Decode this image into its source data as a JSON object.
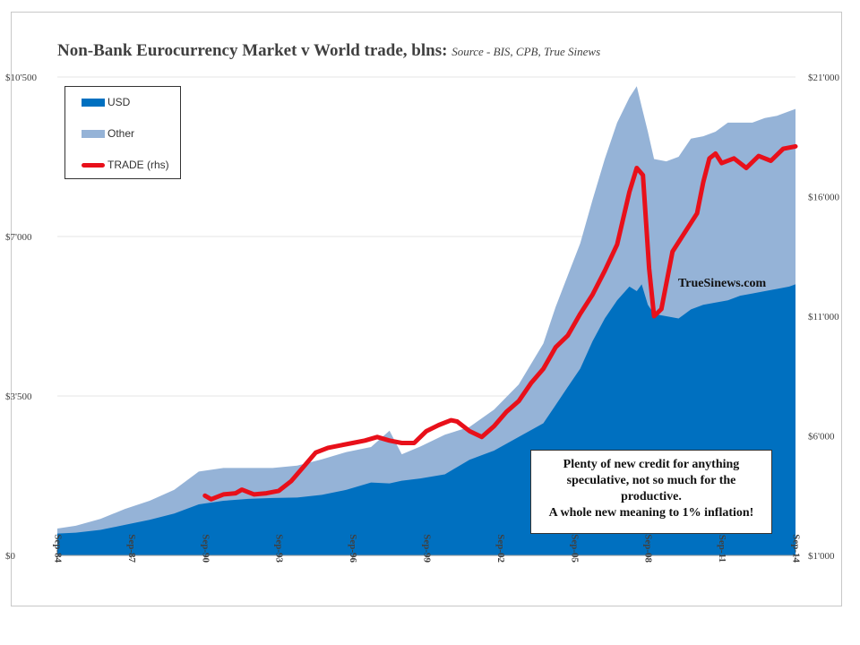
{
  "title": "Non-Bank Eurocurrency Market v World trade, blns:",
  "source": "Source - BIS,  CPB, True Sinews",
  "watermark": "TrueSinews.com",
  "annotation": [
    "Plenty of new credit for anything",
    "speculative, not so much for the",
    "productive.",
    "A whole new meaning to 1% inflation!"
  ],
  "legend": {
    "usd": "USD",
    "other": "Other",
    "trade": "TRADE (rhs)"
  },
  "colors": {
    "usd": "#0070c0",
    "other": "#95b3d7",
    "trade": "#e8101a",
    "grid": "#e6e6e6"
  },
  "chart_data": {
    "type": "area",
    "title": "Non-Bank Eurocurrency Market v World trade, blns:",
    "x_start_year": 1984,
    "x_end_year": 2014,
    "x_ticks": [
      "Sep-84",
      "Sep-87",
      "Sep-90",
      "Sep-93",
      "Sep-96",
      "Sep-99",
      "Sep-02",
      "Sep-05",
      "Sep-08",
      "Sep-11",
      "Sep-14"
    ],
    "y_left": {
      "min": 0,
      "max": 10500,
      "ticks": [
        0,
        3500,
        7000,
        10500
      ],
      "tick_labels": [
        "$0",
        "$3'500",
        "$7'000",
        "$10'500"
      ]
    },
    "y_right": {
      "min": 1000,
      "max": 21000,
      "ticks": [
        1000,
        6000,
        11000,
        16000,
        21000
      ],
      "tick_labels": [
        "$1'000",
        "$6'000",
        "$11'000",
        "$16'000",
        "$21'000"
      ]
    },
    "grid": true,
    "legend_position": "top-left",
    "series": [
      {
        "name": "USD",
        "axis": "left",
        "stacked": true,
        "points": [
          [
            1984.75,
            480
          ],
          [
            1985.5,
            500
          ],
          [
            1986.5,
            560
          ],
          [
            1987.5,
            670
          ],
          [
            1988.5,
            780
          ],
          [
            1989.5,
            920
          ],
          [
            1990.5,
            1120
          ],
          [
            1991.5,
            1200
          ],
          [
            1992.5,
            1240
          ],
          [
            1993.5,
            1260
          ],
          [
            1994.5,
            1270
          ],
          [
            1995.5,
            1330
          ],
          [
            1996.5,
            1440
          ],
          [
            1997.5,
            1600
          ],
          [
            1998.25,
            1580
          ],
          [
            1998.75,
            1640
          ],
          [
            1999.5,
            1690
          ],
          [
            2000.5,
            1780
          ],
          [
            2001.5,
            2100
          ],
          [
            2002.5,
            2300
          ],
          [
            2003.5,
            2600
          ],
          [
            2004.5,
            2900
          ],
          [
            2005.0,
            3300
          ],
          [
            2005.5,
            3700
          ],
          [
            2006.0,
            4100
          ],
          [
            2006.5,
            4700
          ],
          [
            2007.0,
            5200
          ],
          [
            2007.5,
            5600
          ],
          [
            2008.0,
            5900
          ],
          [
            2008.3,
            5800
          ],
          [
            2008.5,
            5950
          ],
          [
            2008.75,
            5500
          ],
          [
            2009.0,
            5300
          ],
          [
            2009.5,
            5250
          ],
          [
            2010.0,
            5200
          ],
          [
            2010.5,
            5400
          ],
          [
            2011.0,
            5500
          ],
          [
            2011.5,
            5550
          ],
          [
            2012.0,
            5600
          ],
          [
            2012.5,
            5700
          ],
          [
            2013.0,
            5750
          ],
          [
            2013.5,
            5800
          ],
          [
            2014.0,
            5850
          ],
          [
            2014.5,
            5900
          ],
          [
            2014.75,
            5950
          ]
        ]
      },
      {
        "name": "Other",
        "axis": "left",
        "stacked": true,
        "points": [
          [
            1984.75,
            110
          ],
          [
            1985.5,
            150
          ],
          [
            1986.5,
            240
          ],
          [
            1987.5,
            350
          ],
          [
            1988.5,
            420
          ],
          [
            1989.5,
            520
          ],
          [
            1990.5,
            720
          ],
          [
            1991.5,
            720
          ],
          [
            1992.5,
            680
          ],
          [
            1993.5,
            660
          ],
          [
            1994.5,
            700
          ],
          [
            1995.5,
            780
          ],
          [
            1996.5,
            830
          ],
          [
            1997.5,
            780
          ],
          [
            1998.25,
            1160
          ],
          [
            1998.75,
            580
          ],
          [
            1999.5,
            700
          ],
          [
            2000.5,
            870
          ],
          [
            2001.5,
            720
          ],
          [
            2002.5,
            900
          ],
          [
            2003.5,
            1150
          ],
          [
            2004.5,
            1750
          ],
          [
            2005.0,
            2150
          ],
          [
            2005.5,
            2450
          ],
          [
            2006.0,
            2750
          ],
          [
            2006.5,
            3100
          ],
          [
            2007.0,
            3500
          ],
          [
            2007.5,
            3900
          ],
          [
            2008.0,
            4150
          ],
          [
            2008.3,
            4500
          ],
          [
            2008.5,
            3900
          ],
          [
            2008.75,
            3800
          ],
          [
            2009.0,
            3400
          ],
          [
            2009.5,
            3400
          ],
          [
            2010.0,
            3550
          ],
          [
            2010.5,
            3750
          ],
          [
            2011.0,
            3700
          ],
          [
            2011.5,
            3750
          ],
          [
            2012.0,
            3900
          ],
          [
            2012.5,
            3800
          ],
          [
            2013.0,
            3750
          ],
          [
            2013.5,
            3800
          ],
          [
            2014.0,
            3800
          ],
          [
            2014.5,
            3850
          ],
          [
            2014.75,
            3850
          ]
        ]
      },
      {
        "name": "TRADE (rhs)",
        "axis": "right",
        "type": "line",
        "points": [
          [
            1990.75,
            3500
          ],
          [
            1991.0,
            3350
          ],
          [
            1991.5,
            3550
          ],
          [
            1992.0,
            3600
          ],
          [
            1992.25,
            3750
          ],
          [
            1992.75,
            3550
          ],
          [
            1993.25,
            3600
          ],
          [
            1993.75,
            3700
          ],
          [
            1994.25,
            4100
          ],
          [
            1994.75,
            4700
          ],
          [
            1995.25,
            5300
          ],
          [
            1995.75,
            5500
          ],
          [
            1996.25,
            5600
          ],
          [
            1996.75,
            5700
          ],
          [
            1997.25,
            5800
          ],
          [
            1997.75,
            5950
          ],
          [
            1998.25,
            5800
          ],
          [
            1998.75,
            5700
          ],
          [
            1999.25,
            5700
          ],
          [
            1999.75,
            6200
          ],
          [
            2000.25,
            6450
          ],
          [
            2000.75,
            6650
          ],
          [
            2001.0,
            6600
          ],
          [
            2001.5,
            6200
          ],
          [
            2002.0,
            5950
          ],
          [
            2002.5,
            6400
          ],
          [
            2003.0,
            7000
          ],
          [
            2003.5,
            7450
          ],
          [
            2004.0,
            8200
          ],
          [
            2004.5,
            8800
          ],
          [
            2005.0,
            9700
          ],
          [
            2005.5,
            10200
          ],
          [
            2006.0,
            11100
          ],
          [
            2006.5,
            11900
          ],
          [
            2007.0,
            12900
          ],
          [
            2007.5,
            14000
          ],
          [
            2008.0,
            16200
          ],
          [
            2008.3,
            17200
          ],
          [
            2008.55,
            16900
          ],
          [
            2008.8,
            13000
          ],
          [
            2009.0,
            11000
          ],
          [
            2009.3,
            11300
          ],
          [
            2009.75,
            13700
          ],
          [
            2010.25,
            14500
          ],
          [
            2010.75,
            15300
          ],
          [
            2011.0,
            16600
          ],
          [
            2011.25,
            17600
          ],
          [
            2011.5,
            17800
          ],
          [
            2011.75,
            17400
          ],
          [
            2012.25,
            17600
          ],
          [
            2012.75,
            17200
          ],
          [
            2013.25,
            17700
          ],
          [
            2013.75,
            17500
          ],
          [
            2014.25,
            18000
          ],
          [
            2014.75,
            18100
          ]
        ]
      }
    ]
  }
}
